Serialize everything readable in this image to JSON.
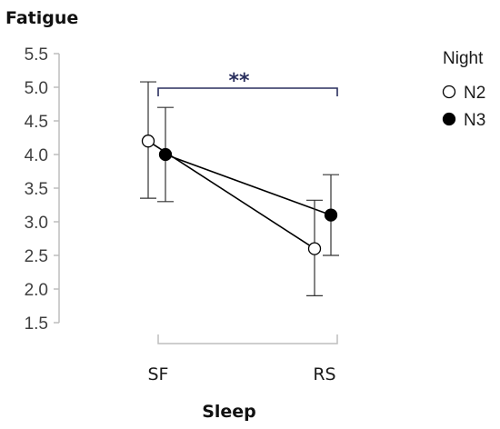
{
  "chart_data": {
    "type": "line",
    "title": "Fatigue",
    "xlabel": "Sleep",
    "ylabel": "",
    "categories": [
      "SF",
      "RS"
    ],
    "ylim": [
      1.5,
      5.5
    ],
    "yticks": [
      "5.5",
      "5.0",
      "4.5",
      "4.0",
      "3.5",
      "3.0",
      "2.5",
      "2.0",
      "1.5"
    ],
    "grid": false,
    "legend": {
      "title": "Night",
      "placement": "right"
    },
    "series": [
      {
        "name": "N2",
        "marker": "open-circle",
        "color": "#000000",
        "values": [
          4.2,
          2.6
        ],
        "error_low": [
          3.35,
          1.9
        ],
        "error_high": [
          5.08,
          3.32
        ]
      },
      {
        "name": "N3",
        "marker": "filled-circle",
        "color": "#000000",
        "values": [
          4.0,
          3.1
        ],
        "error_low": [
          3.3,
          2.5
        ],
        "error_high": [
          4.7,
          3.7
        ]
      }
    ],
    "annotation": {
      "text": "**",
      "between": [
        "SF",
        "RS"
      ],
      "color": "#2a2f5e"
    }
  }
}
